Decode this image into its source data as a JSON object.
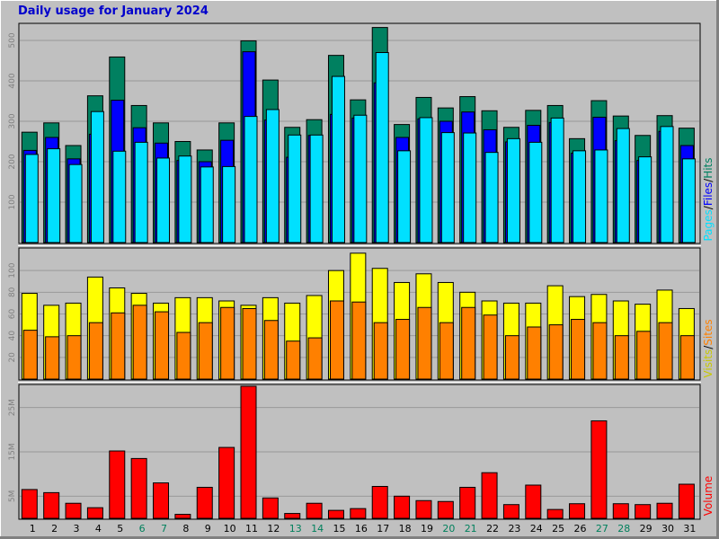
{
  "title": "Daily usage for January 2024",
  "colors": {
    "background": "#c0c0c0",
    "hits": "#008060",
    "files": "#0000ff",
    "pages": "#00e0ff",
    "visits": "#ffff00",
    "sites": "#ff8000",
    "kbytes": "#ff0000",
    "weekday_label": "#000000",
    "weekend_label": "#00805c",
    "title": "#0000cc",
    "gridline": "#999999"
  },
  "legend": {
    "top": [
      "Pages",
      "/",
      "Files",
      "/",
      "Hits"
    ],
    "middle": [
      "Visits",
      "/",
      "Sites"
    ],
    "bottom": [
      "Volume"
    ]
  },
  "chart_data": [
    {
      "type": "bar",
      "panel": "Pages/Files/Hits",
      "categories": [
        "1",
        "2",
        "3",
        "4",
        "5",
        "6",
        "7",
        "8",
        "9",
        "10",
        "11",
        "12",
        "13",
        "14",
        "15",
        "16",
        "17",
        "18",
        "19",
        "20",
        "21",
        "22",
        "23",
        "24",
        "25",
        "26",
        "27",
        "28",
        "29",
        "30",
        "31"
      ],
      "weekend_days": [
        "6",
        "7",
        "13",
        "14",
        "20",
        "21",
        "27",
        "28"
      ],
      "ylim": [
        0,
        540
      ],
      "yticks": [
        100,
        200,
        300,
        400,
        500
      ],
      "grid": true,
      "series": [
        {
          "name": "Hits",
          "values": [
            273,
            296,
            240,
            363,
            459,
            339,
            296,
            250,
            229,
            296,
            499,
            402,
            285,
            304,
            463,
            353,
            532,
            292,
            359,
            333,
            361,
            326,
            285,
            327,
            339,
            257,
            351,
            313,
            265,
            314,
            283
          ]
        },
        {
          "name": "Files",
          "values": [
            228,
            260,
            207,
            268,
            352,
            284,
            246,
            203,
            200,
            253,
            472,
            303,
            211,
            265,
            317,
            308,
            395,
            260,
            306,
            300,
            323,
            279,
            249,
            290,
            297,
            221,
            310,
            252,
            203,
            275,
            240
          ]
        },
        {
          "name": "Pages",
          "values": [
            218,
            232,
            193,
            324,
            226,
            248,
            209,
            214,
            187,
            188,
            312,
            329,
            266,
            266,
            411,
            315,
            470,
            227,
            309,
            272,
            271,
            223,
            257,
            248,
            308,
            227,
            229,
            282,
            212,
            287,
            207
          ]
        }
      ]
    },
    {
      "type": "bar",
      "panel": "Visits/Sites",
      "categories": [
        "1",
        "2",
        "3",
        "4",
        "5",
        "6",
        "7",
        "8",
        "9",
        "10",
        "11",
        "12",
        "13",
        "14",
        "15",
        "16",
        "17",
        "18",
        "19",
        "20",
        "21",
        "22",
        "23",
        "24",
        "25",
        "26",
        "27",
        "28",
        "29",
        "30",
        "31"
      ],
      "ylim": [
        0,
        120
      ],
      "yticks": [
        20,
        40,
        60,
        80,
        100
      ],
      "grid": true,
      "series": [
        {
          "name": "Visits",
          "values": [
            79,
            68,
            70,
            94,
            84,
            79,
            70,
            75,
            75,
            72,
            68,
            75,
            70,
            77,
            100,
            116,
            102,
            89,
            97,
            89,
            80,
            72,
            70,
            70,
            86,
            76,
            78,
            72,
            69,
            82,
            65
          ]
        },
        {
          "name": "Sites",
          "values": [
            45,
            39,
            40,
            52,
            61,
            68,
            62,
            43,
            52,
            66,
            65,
            54,
            35,
            38,
            72,
            71,
            52,
            55,
            66,
            52,
            66,
            59,
            40,
            48,
            50,
            55,
            52,
            40,
            44,
            52,
            40
          ]
        }
      ]
    },
    {
      "type": "bar",
      "panel": "Volume",
      "categories": [
        "1",
        "2",
        "3",
        "4",
        "5",
        "6",
        "7",
        "8",
        "9",
        "10",
        "11",
        "12",
        "13",
        "14",
        "15",
        "16",
        "17",
        "18",
        "19",
        "20",
        "21",
        "22",
        "23",
        "24",
        "25",
        "26",
        "27",
        "28",
        "29",
        "30",
        "31"
      ],
      "ylim": [
        0,
        30
      ],
      "yticks": [
        5,
        15,
        25
      ],
      "ytick_labels": [
        "5M",
        "15M",
        "25M"
      ],
      "unit": "MB",
      "grid": true,
      "series": [
        {
          "name": "Volume",
          "values": [
            6.5,
            5.8,
            3.4,
            2.4,
            15.2,
            13.5,
            8.0,
            0.9,
            7.0,
            16.0,
            29.8,
            4.6,
            1.1,
            3.4,
            1.8,
            2.2,
            7.2,
            5.0,
            4.0,
            3.8,
            7.0,
            10.3,
            3.1,
            7.5,
            2.0,
            3.3,
            22.0,
            3.3,
            3.1,
            3.4,
            7.7
          ]
        }
      ]
    }
  ]
}
